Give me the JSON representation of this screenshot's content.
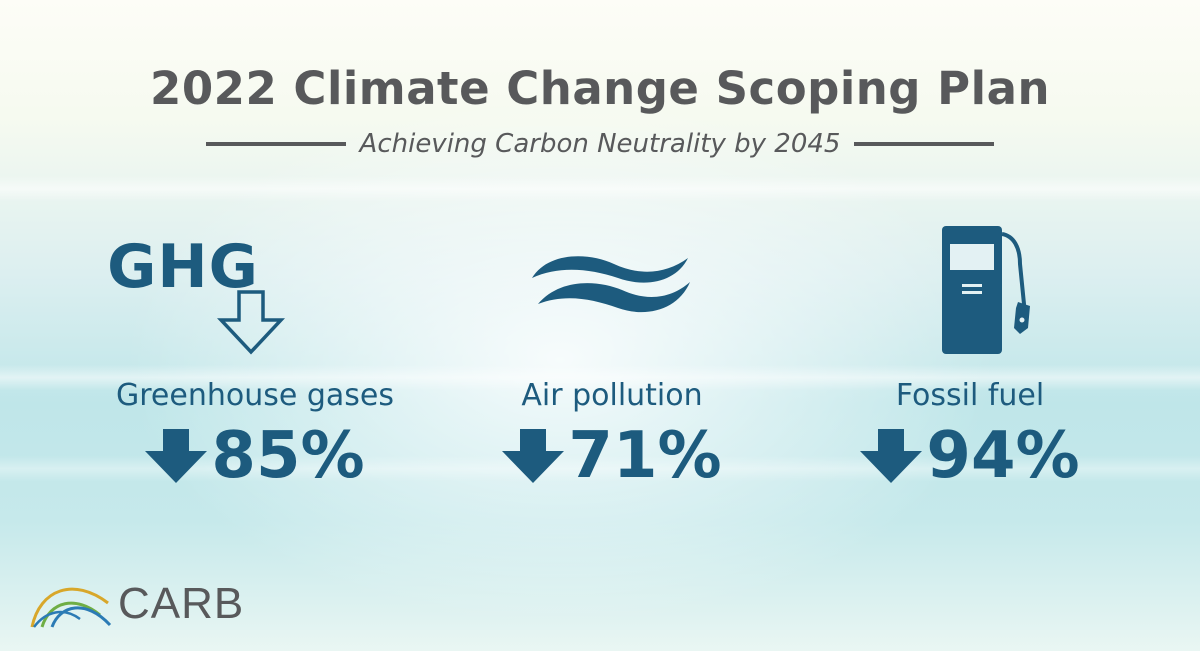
{
  "header": {
    "title": "2022 Climate Change Scoping Plan",
    "subtitle": "Achieving Carbon Neutrality by 2045"
  },
  "metrics": [
    {
      "icon_text": "GHG",
      "icon": "ghg-down-arrow-icon",
      "label": "Greenhouse gases",
      "direction": "down",
      "value": "85%"
    },
    {
      "icon": "air-waves-icon",
      "label": "Air pollution",
      "direction": "down",
      "value": "71%"
    },
    {
      "icon": "fuel-pump-icon",
      "label": "Fossil fuel",
      "direction": "down",
      "value": "94%"
    }
  ],
  "logo": {
    "text": "CARB",
    "icon": "carb-arcs-logo-icon"
  },
  "colors": {
    "primary": "#1d5b7e",
    "title_gray": "#58595b",
    "logo_gold": "#d8a72a",
    "logo_green": "#6fae45",
    "logo_blue": "#2b7bb5"
  }
}
